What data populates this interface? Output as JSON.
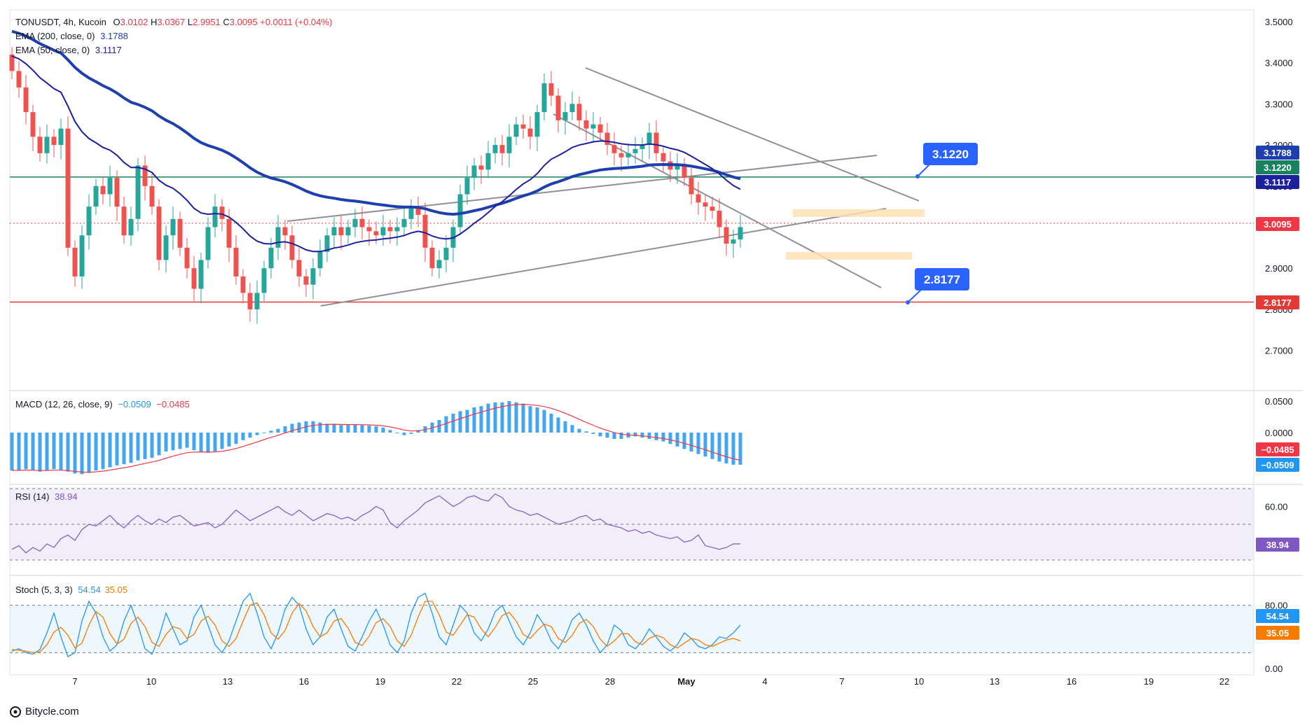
{
  "chart_data": {
    "type": "candlestick",
    "symbol": "TONUSDT",
    "interval": "4h",
    "exchange": "Kucoin",
    "ohlc_header": {
      "O": "3.0102",
      "H": "3.0367",
      "L": "2.9951",
      "C": "3.0095",
      "change": "+0.0011 (+0.04%)"
    },
    "price_axis": {
      "ticks": [
        "3.5000",
        "3.4000",
        "3.3000",
        "3.2000",
        "3.1000",
        "3.0000",
        "2.9000",
        "2.8000",
        "2.7000"
      ],
      "range": [
        2.62,
        3.52
      ]
    },
    "date_axis": {
      "ticks": [
        "7",
        "10",
        "13",
        "16",
        "19",
        "22",
        "25",
        "28",
        "May",
        "4",
        "7",
        "10",
        "13",
        "16",
        "19",
        "22"
      ]
    },
    "series": [
      {
        "name": "EMA (200, close, 0)",
        "value": "3.1788",
        "color": "#1e3fb0"
      },
      {
        "name": "EMA (50, close, 0)",
        "value": "3.1117",
        "color": "#1c1f9e"
      }
    ],
    "candles_close": [
      3.38,
      3.34,
      3.28,
      3.22,
      3.18,
      3.22,
      3.2,
      3.24,
      2.95,
      2.88,
      2.98,
      3.05,
      3.1,
      3.08,
      3.12,
      3.05,
      2.98,
      3.02,
      3.15,
      3.1,
      3.05,
      2.92,
      2.98,
      3.02,
      2.95,
      2.9,
      2.85,
      2.92,
      3.0,
      3.05,
      3.02,
      2.95,
      2.88,
      2.84,
      2.8,
      2.84,
      2.9,
      2.95,
      3.0,
      2.98,
      2.92,
      2.88,
      2.86,
      2.9,
      2.94,
      2.98,
      3.0,
      2.98,
      3.0,
      3.02,
      3.0,
      2.99,
      2.98,
      3.0,
      2.99,
      3.0,
      3.02,
      3.05,
      3.03,
      2.95,
      2.9,
      2.92,
      2.95,
      3.0,
      3.08,
      3.12,
      3.15,
      3.14,
      3.18,
      3.2,
      3.18,
      3.22,
      3.25,
      3.24,
      3.22,
      3.28,
      3.35,
      3.32,
      3.26,
      3.28,
      3.3,
      3.26,
      3.24,
      3.25,
      3.23,
      3.2,
      3.18,
      3.17,
      3.18,
      3.19,
      3.2,
      3.23,
      3.18,
      3.16,
      3.14,
      3.15,
      3.12,
      3.08,
      3.06,
      3.05,
      3.04,
      3.0,
      2.96,
      2.97,
      3.0
    ],
    "levels": [
      {
        "name": "resistance",
        "value": "3.1220",
        "price": 3.122,
        "color": "#17825d"
      },
      {
        "name": "support",
        "value": "2.8177",
        "price": 2.8177,
        "color": "#e53935"
      }
    ],
    "last_price": {
      "value": "3.0095",
      "price": 3.0095,
      "color": "#f23645"
    },
    "price_labels": [
      {
        "value": "3.1788",
        "color": "#1e3fb0"
      },
      {
        "value": "3.1220",
        "color": "#17825d"
      },
      {
        "value": "3.1117",
        "color": "#1c1f9e"
      },
      {
        "value": "3.0095",
        "color": "#f23645"
      },
      {
        "value": "2.8177",
        "color": "#e53935"
      }
    ],
    "callouts": [
      {
        "value": "3.1220",
        "color": "#2962ff"
      },
      {
        "value": "2.8177",
        "color": "#2962ff"
      }
    ],
    "indicators": {
      "macd": {
        "title": "MACD (12, 26, close, 9)",
        "values": [
          "−0.0509",
          "−0.0485"
        ],
        "colors": [
          "#2196f3",
          "#f23645"
        ],
        "ticks": [
          "0.0500",
          "0.0000"
        ],
        "labels": [
          {
            "value": "−0.0485",
            "color": "#f23645"
          },
          {
            "value": "−0.0509",
            "color": "#2196f3"
          }
        ],
        "histogram": [
          -0.06,
          -0.06,
          -0.058,
          -0.06,
          -0.062,
          -0.06,
          -0.058,
          -0.06,
          -0.062,
          -0.065,
          -0.066,
          -0.064,
          -0.06,
          -0.058,
          -0.055,
          -0.052,
          -0.05,
          -0.048,
          -0.044,
          -0.042,
          -0.04,
          -0.036,
          -0.03,
          -0.028,
          -0.026,
          -0.024,
          -0.028,
          -0.03,
          -0.032,
          -0.03,
          -0.026,
          -0.022,
          -0.018,
          -0.012,
          -0.008,
          -0.004,
          0.0,
          0.003,
          0.006,
          0.01,
          0.014,
          0.016,
          0.018,
          0.018,
          0.016,
          0.014,
          0.014,
          0.012,
          0.012,
          0.013,
          0.012,
          0.011,
          0.01,
          0.008,
          0.004,
          0.0,
          -0.004,
          -0.002,
          0.004,
          0.01,
          0.016,
          0.02,
          0.026,
          0.03,
          0.034,
          0.036,
          0.04,
          0.042,
          0.046,
          0.048,
          0.048,
          0.05,
          0.048,
          0.046,
          0.042,
          0.04,
          0.036,
          0.03,
          0.024,
          0.018,
          0.012,
          0.006,
          0.002,
          -0.002,
          -0.006,
          -0.008,
          -0.01,
          -0.01,
          -0.008,
          -0.006,
          -0.008,
          -0.01,
          -0.012,
          -0.014,
          -0.018,
          -0.022,
          -0.026,
          -0.03,
          -0.034,
          -0.038,
          -0.042,
          -0.046,
          -0.049,
          -0.051,
          -0.051
        ]
      },
      "rsi": {
        "title": "RSI (14)",
        "value": "38.94",
        "color": "#7e57c2",
        "ticks": [
          "60.00"
        ],
        "label": {
          "value": "38.94",
          "color": "#7e57c2"
        },
        "values": [
          36,
          38,
          34,
          37,
          35,
          39,
          37,
          42,
          44,
          41,
          47,
          50,
          49,
          52,
          55,
          51,
          48,
          52,
          55,
          52,
          50,
          53,
          51,
          54,
          55,
          52,
          49,
          50,
          51,
          48,
          50,
          54,
          58,
          55,
          52,
          54,
          56,
          58,
          60,
          57,
          55,
          58,
          55,
          52,
          54,
          56,
          55,
          53,
          54,
          52,
          55,
          57,
          60,
          58,
          51,
          48,
          52,
          55,
          58,
          62,
          64,
          66,
          63,
          60,
          62,
          65,
          66,
          64,
          63,
          67,
          65,
          60,
          58,
          57,
          55,
          56,
          54,
          52,
          50,
          51,
          52,
          54,
          55,
          52,
          53,
          50,
          49,
          48,
          46,
          47,
          45,
          46,
          44,
          43,
          42,
          43,
          40,
          41,
          44,
          38,
          37,
          36,
          37,
          39,
          39
        ]
      },
      "stoch": {
        "title": "Stoch (5, 3, 3)",
        "values": [
          "54.54",
          "35.05"
        ],
        "colors": [
          "#2196f3",
          "#f57c00"
        ],
        "ticks": [
          "80.00",
          "0.00"
        ],
        "labels": [
          {
            "value": "54.54",
            "color": "#2196f3"
          },
          {
            "value": "35.05",
            "color": "#f57c00"
          }
        ],
        "k": [
          22,
          25,
          20,
          18,
          24,
          45,
          70,
          40,
          15,
          20,
          60,
          85,
          70,
          40,
          22,
          30,
          60,
          80,
          55,
          25,
          18,
          40,
          70,
          50,
          30,
          35,
          65,
          80,
          55,
          30,
          20,
          35,
          60,
          85,
          95,
          70,
          40,
          25,
          45,
          75,
          90,
          80,
          50,
          30,
          40,
          65,
          75,
          50,
          28,
          22,
          40,
          60,
          75,
          55,
          30,
          20,
          35,
          70,
          90,
          95,
          70,
          40,
          30,
          55,
          80,
          70,
          45,
          35,
          50,
          72,
          80,
          60,
          40,
          30,
          45,
          68,
          55,
          35,
          25,
          40,
          62,
          70,
          55,
          35,
          20,
          30,
          55,
          48,
          30,
          25,
          35,
          50,
          40,
          28,
          22,
          30,
          45,
          38,
          28,
          25,
          30,
          40,
          38,
          45,
          55
        ],
        "d": [
          24,
          23,
          22,
          20,
          21,
          30,
          46,
          52,
          42,
          26,
          32,
          55,
          72,
          65,
          44,
          31,
          37,
          57,
          65,
          53,
          33,
          28,
          43,
          53,
          50,
          38,
          43,
          60,
          66,
          55,
          35,
          28,
          38,
          60,
          80,
          83,
          68,
          45,
          37,
          48,
          70,
          82,
          73,
          53,
          40,
          45,
          60,
          63,
          51,
          33,
          29,
          41,
          58,
          63,
          53,
          35,
          28,
          42,
          65,
          85,
          85,
          68,
          46,
          42,
          55,
          68,
          65,
          50,
          40,
          52,
          67,
          71,
          60,
          43,
          38,
          48,
          56,
          53,
          38,
          33,
          42,
          57,
          62,
          53,
          37,
          28,
          35,
          44,
          44,
          34,
          30,
          38,
          42,
          39,
          30,
          26,
          32,
          38,
          36,
          30,
          28,
          32,
          36,
          38,
          35
        ]
      }
    }
  },
  "branding": {
    "site": "Bitycle.com"
  }
}
